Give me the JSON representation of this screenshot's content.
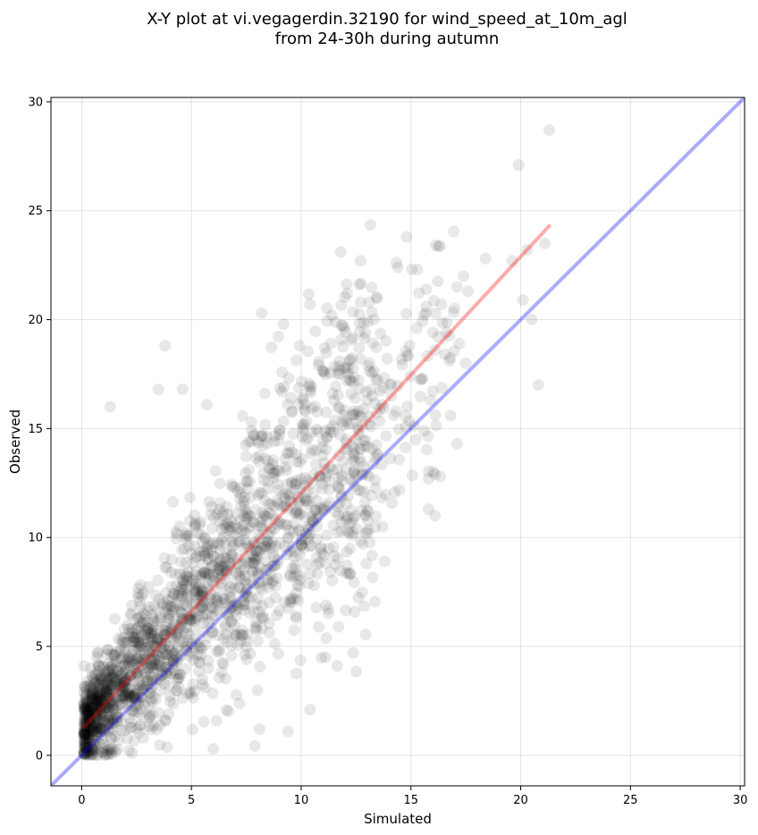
{
  "chart_data": {
    "type": "scatter",
    "title_lines": [
      "X-Y plot at vi.vegagerdin.32190 for wind_speed_at_10m_agl",
      "from 24-30h during autumn"
    ],
    "xlabel": "Simulated",
    "ylabel": "Observed",
    "xlim": [
      -1.4,
      30.2
    ],
    "ylim": [
      -1.4,
      30.2
    ],
    "xticks": [
      0,
      5,
      10,
      15,
      20,
      25,
      30
    ],
    "yticks": [
      0,
      5,
      10,
      15,
      20,
      25,
      30
    ],
    "grid": true,
    "legend": "none",
    "point_color": "#000000",
    "point_alpha": 0.09,
    "fit_line": {
      "color": "#ff0000",
      "from": [
        0.1,
        1.3
      ],
      "to": [
        21.3,
        24.3
      ]
    },
    "identity_line": {
      "color": "#0000ff",
      "from": [
        -1.4,
        -1.4
      ],
      "to": [
        30.2,
        30.2
      ]
    },
    "outlier_points": [
      [
        21.3,
        28.7
      ],
      [
        19.9,
        27.1
      ],
      [
        20.3,
        23.2
      ],
      [
        21.1,
        23.5
      ],
      [
        19.6,
        22.7
      ],
      [
        18.4,
        22.8
      ],
      [
        17.4,
        22.0
      ],
      [
        17.1,
        21.5
      ],
      [
        17.6,
        21.3
      ],
      [
        16.4,
        20.7
      ],
      [
        20.1,
        20.9
      ],
      [
        20.5,
        20.0
      ],
      [
        20.8,
        17.0
      ],
      [
        17.2,
        18.9
      ],
      [
        17.5,
        18.0
      ],
      [
        17.1,
        14.3
      ],
      [
        16.1,
        12.9
      ],
      [
        15.8,
        12.7
      ],
      [
        15.8,
        11.3
      ],
      [
        16.1,
        11.0
      ],
      [
        15.6,
        14.9
      ],
      [
        15.9,
        16.3
      ],
      [
        16.1,
        18.6
      ],
      [
        15.7,
        20.6
      ],
      [
        14.8,
        23.8
      ],
      [
        14.4,
        22.4
      ],
      [
        15.3,
        22.3
      ],
      [
        11.8,
        23.1
      ],
      [
        12.7,
        22.7
      ],
      [
        12.1,
        21.2
      ],
      [
        12.7,
        20.8
      ],
      [
        13.1,
        20.8
      ],
      [
        11.4,
        20.2
      ],
      [
        10.4,
        20.7
      ],
      [
        8.2,
        20.3
      ],
      [
        3.8,
        18.8
      ],
      [
        1.3,
        16.0
      ],
      [
        3.5,
        16.8
      ],
      [
        4.6,
        16.8
      ],
      [
        5.7,
        16.1
      ],
      [
        13.8,
        8.9
      ],
      [
        12.2,
        8.3
      ],
      [
        11.1,
        4.5
      ],
      [
        10.4,
        2.1
      ],
      [
        9.4,
        1.1
      ],
      [
        8.1,
        1.2
      ],
      [
        6.0,
        0.3
      ],
      [
        10.8,
        5.9
      ],
      [
        11.7,
        5.9
      ],
      [
        12.8,
        9.7
      ]
    ]
  }
}
